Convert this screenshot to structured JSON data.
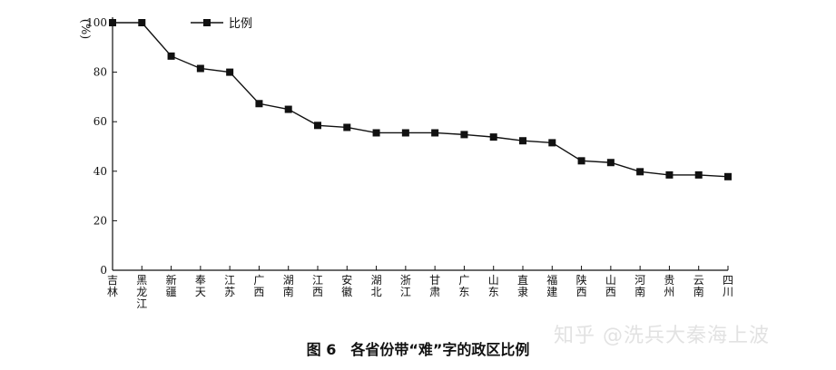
{
  "chart_data": {
    "type": "line",
    "categories": [
      "吉\n林",
      "黑\n龙\n江",
      "新\n疆",
      "奉\n天",
      "江\n苏",
      "广\n西",
      "湖\n南",
      "江\n西",
      "安\n徽",
      "湖\n北",
      "浙\n江",
      "甘\n肃",
      "广\n东",
      "山\n东",
      "直\n隶",
      "福\n建",
      "陕\n西",
      "山\n西",
      "河\n南",
      "贵\n州",
      "云\n南",
      "四\n川"
    ],
    "series": [
      {
        "name": "比例",
        "values": [
          100,
          100,
          86.5,
          81.5,
          80,
          67.3,
          65,
          58.5,
          57.7,
          55.5,
          55.5,
          55.5,
          54.8,
          53.8,
          52.3,
          51.5,
          44.2,
          43.5,
          39.8,
          38.5,
          38.5,
          37.8
        ]
      }
    ],
    "ylabel": "%",
    "ylim": [
      0,
      100
    ],
    "yticks": [
      "0",
      "20",
      "40",
      "60",
      "80",
      "100"
    ],
    "legend_position": "top-left",
    "grid": false,
    "marker": "square",
    "line_color": "#111111"
  },
  "caption": "图 6　各省份带“难”字的政区比例",
  "watermark": "知乎 @洗兵大秦海上波"
}
